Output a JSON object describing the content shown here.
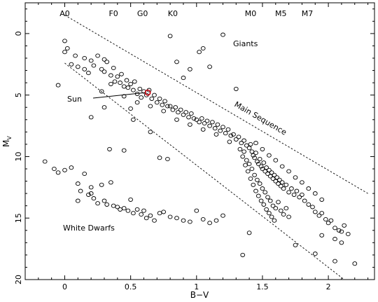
{
  "chart_data": {
    "type": "scatter",
    "title": "",
    "xlabel": "B−V",
    "ylabel": "M",
    "ylabel_subscript": "V",
    "xlim": [
      -0.3,
      2.35
    ],
    "ylim": [
      20,
      -2.5
    ],
    "y_inverted": true,
    "grid": false,
    "x_ticks": [
      0,
      0.5,
      1,
      1.5,
      2
    ],
    "x_tick_labels": [
      "0",
      "0.5",
      "1",
      "1.5",
      "2"
    ],
    "y_ticks": [
      0,
      5,
      10,
      15,
      20
    ],
    "y_tick_labels": [
      "0",
      "5",
      "10",
      "15",
      "20"
    ],
    "spectral_classes": [
      {
        "label": "A0",
        "x": 0.0
      },
      {
        "label": "F0",
        "x": 0.37
      },
      {
        "label": "G0",
        "x": 0.59
      },
      {
        "label": "K0",
        "x": 0.82
      },
      {
        "label": "M0",
        "x": 1.41
      },
      {
        "label": "M5",
        "x": 1.64
      },
      {
        "label": "M7",
        "x": 1.84
      }
    ],
    "region_labels": {
      "giants": "Giants",
      "main_sequence": "Main Sequence",
      "white_dwarfs": "White Dwarfs",
      "sun": "Sun"
    },
    "sun": {
      "x": 0.63,
      "y": 4.8,
      "color": "#c0000b"
    },
    "main_sequence_bounds": [
      {
        "name": "upper",
        "points": [
          [
            0.0,
            -1.5
          ],
          [
            2.3,
            13.0
          ]
        ]
      },
      {
        "name": "lower",
        "points": [
          [
            0.0,
            2.4
          ],
          [
            2.12,
            20.0
          ]
        ]
      }
    ],
    "series": [
      {
        "group": "main_sequence",
        "points": [
          [
            0.0,
            1.5
          ],
          [
            0.05,
            2.5
          ],
          [
            0.1,
            2.7
          ],
          [
            0.15,
            2.0
          ],
          [
            0.18,
            3.2
          ],
          [
            0.2,
            2.2
          ],
          [
            0.22,
            2.6
          ],
          [
            0.25,
            1.8
          ],
          [
            0.28,
            2.9
          ],
          [
            0.3,
            3.1
          ],
          [
            0.32,
            2.3
          ],
          [
            0.35,
            3.4
          ],
          [
            0.37,
            2.8
          ],
          [
            0.38,
            3.9
          ],
          [
            0.4,
            3.5
          ],
          [
            0.42,
            4.0
          ],
          [
            0.43,
            3.3
          ],
          [
            0.45,
            4.3
          ],
          [
            0.47,
            3.8
          ],
          [
            0.48,
            4.4
          ],
          [
            0.5,
            4.1
          ],
          [
            0.52,
            4.6
          ],
          [
            0.53,
            3.9
          ],
          [
            0.55,
            4.9
          ],
          [
            0.57,
            4.5
          ],
          [
            0.58,
            5.2
          ],
          [
            0.6,
            4.7
          ],
          [
            0.62,
            5.0
          ],
          [
            0.64,
            4.6
          ],
          [
            0.66,
            5.3
          ],
          [
            0.68,
            5.0
          ],
          [
            0.7,
            5.6
          ],
          [
            0.72,
            5.3
          ],
          [
            0.74,
            5.8
          ],
          [
            0.76,
            5.5
          ],
          [
            0.78,
            5.9
          ],
          [
            0.8,
            5.9
          ],
          [
            0.82,
            6.2
          ],
          [
            0.84,
            6.0
          ],
          [
            0.86,
            6.4
          ],
          [
            0.88,
            6.2
          ],
          [
            0.9,
            6.6
          ],
          [
            0.92,
            6.4
          ],
          [
            0.94,
            6.8
          ],
          [
            0.96,
            6.5
          ],
          [
            0.98,
            6.9
          ],
          [
            1.0,
            7.0
          ],
          [
            1.02,
            7.2
          ],
          [
            1.04,
            6.9
          ],
          [
            1.06,
            7.3
          ],
          [
            1.08,
            7.1
          ],
          [
            1.1,
            7.5
          ],
          [
            1.12,
            7.2
          ],
          [
            1.14,
            7.7
          ],
          [
            1.16,
            7.4
          ],
          [
            1.18,
            7.9
          ],
          [
            1.2,
            7.6
          ],
          [
            1.22,
            8.1
          ],
          [
            1.24,
            7.8
          ],
          [
            1.26,
            8.3
          ],
          [
            1.28,
            8.2
          ],
          [
            1.3,
            8.6
          ],
          [
            1.32,
            8.4
          ],
          [
            1.34,
            8.9
          ],
          [
            1.36,
            8.7
          ],
          [
            1.38,
            9.1
          ],
          [
            1.4,
            9.3
          ],
          [
            1.41,
            9.0
          ],
          [
            1.42,
            9.6
          ],
          [
            1.43,
            9.9
          ],
          [
            1.44,
            10.1
          ],
          [
            1.45,
            9.7
          ],
          [
            1.46,
            10.4
          ],
          [
            1.47,
            10.6
          ],
          [
            1.48,
            10.2
          ],
          [
            1.49,
            10.8
          ],
          [
            1.5,
            11.0
          ],
          [
            1.51,
            10.5
          ],
          [
            1.52,
            11.2
          ],
          [
            1.53,
            10.9
          ],
          [
            1.54,
            11.4
          ],
          [
            1.55,
            11.1
          ],
          [
            1.56,
            11.6
          ],
          [
            1.57,
            11.3
          ],
          [
            1.58,
            11.8
          ],
          [
            1.59,
            11.5
          ],
          [
            1.6,
            12.0
          ],
          [
            1.61,
            11.7
          ],
          [
            1.62,
            12.2
          ],
          [
            1.63,
            11.9
          ],
          [
            1.64,
            12.4
          ],
          [
            1.65,
            12.1
          ],
          [
            1.66,
            12.6
          ],
          [
            1.68,
            12.3
          ],
          [
            1.7,
            12.9
          ],
          [
            1.72,
            12.6
          ],
          [
            1.74,
            13.1
          ],
          [
            1.76,
            12.8
          ],
          [
            1.78,
            13.3
          ],
          [
            1.8,
            13.1
          ],
          [
            1.82,
            13.6
          ],
          [
            1.85,
            13.9
          ],
          [
            1.88,
            14.1
          ],
          [
            1.9,
            14.5
          ],
          [
            1.93,
            14.8
          ],
          [
            1.95,
            14.6
          ],
          [
            1.98,
            15.1
          ],
          [
            2.0,
            15.4
          ],
          [
            2.02,
            15.2
          ],
          [
            2.05,
            15.8
          ],
          [
            2.08,
            16.0
          ],
          [
            2.1,
            16.1
          ],
          [
            2.12,
            15.6
          ],
          [
            2.15,
            16.3
          ],
          [
            1.36,
            9.6
          ],
          [
            1.38,
            10.3
          ],
          [
            1.4,
            10.6
          ],
          [
            1.42,
            11.0
          ],
          [
            1.44,
            11.5
          ],
          [
            1.46,
            11.9
          ],
          [
            1.48,
            12.2
          ],
          [
            1.5,
            12.6
          ],
          [
            1.52,
            12.9
          ],
          [
            1.54,
            13.3
          ],
          [
            1.56,
            13.6
          ],
          [
            1.58,
            14.0
          ],
          [
            1.6,
            14.2
          ],
          [
            1.62,
            13.7
          ],
          [
            1.64,
            14.4
          ],
          [
            1.66,
            14.7
          ],
          [
            1.68,
            14.2
          ],
          [
            1.7,
            14.9
          ],
          [
            1.45,
            8.9
          ],
          [
            1.5,
            9.4
          ],
          [
            1.55,
            9.9
          ],
          [
            1.6,
            10.3
          ],
          [
            1.65,
            10.8
          ],
          [
            1.7,
            11.2
          ],
          [
            1.75,
            11.7
          ],
          [
            1.8,
            12.1
          ],
          [
            1.85,
            12.6
          ],
          [
            1.9,
            13.0
          ],
          [
            1.95,
            13.5
          ],
          [
            0.3,
            2.1
          ],
          [
            0.35,
            4.1
          ],
          [
            0.45,
            5.1
          ],
          [
            0.55,
            5.6
          ],
          [
            0.65,
            5.9
          ],
          [
            0.75,
            6.3
          ],
          [
            0.85,
            7.0
          ],
          [
            0.95,
            7.4
          ],
          [
            1.05,
            7.8
          ],
          [
            1.15,
            8.2
          ],
          [
            1.25,
            8.8
          ],
          [
            1.33,
            9.4
          ],
          [
            1.35,
            10.0
          ],
          [
            1.37,
            10.7
          ],
          [
            1.39,
            11.2
          ],
          [
            1.41,
            11.8
          ],
          [
            1.43,
            12.3
          ],
          [
            1.45,
            12.8
          ],
          [
            1.47,
            13.2
          ],
          [
            1.49,
            13.6
          ],
          [
            1.51,
            13.9
          ],
          [
            1.53,
            14.3
          ],
          [
            1.55,
            14.6
          ],
          [
            1.57,
            14.9
          ],
          [
            1.59,
            15.2
          ]
        ]
      },
      {
        "group": "scattered",
        "points": [
          [
            -0.05,
            4.2
          ],
          [
            0.0,
            0.6
          ],
          [
            0.02,
            1.2
          ],
          [
            0.08,
            1.8
          ],
          [
            0.15,
            2.9
          ],
          [
            0.2,
            6.8
          ],
          [
            0.28,
            4.7
          ],
          [
            0.3,
            6.0
          ],
          [
            0.34,
            9.4
          ],
          [
            0.45,
            9.5
          ],
          [
            0.5,
            6.1
          ],
          [
            0.52,
            7.0
          ],
          [
            0.65,
            8.0
          ],
          [
            0.72,
            10.1
          ],
          [
            0.78,
            10.2
          ],
          [
            0.8,
            0.2
          ],
          [
            0.85,
            2.3
          ],
          [
            0.9,
            3.6
          ],
          [
            0.95,
            2.9
          ],
          [
            1.02,
            1.5
          ],
          [
            1.05,
            1.2
          ],
          [
            1.1,
            2.7
          ],
          [
            1.2,
            0.1
          ],
          [
            1.3,
            4.5
          ],
          [
            1.4,
            16.2
          ],
          [
            1.35,
            18.0
          ],
          [
            1.9,
            17.9
          ],
          [
            2.05,
            18.5
          ],
          [
            2.2,
            18.7
          ],
          [
            1.75,
            17.2
          ],
          [
            1.95,
            16.4
          ],
          [
            2.05,
            16.7
          ],
          [
            2.1,
            17.0
          ]
        ]
      },
      {
        "group": "white_dwarfs",
        "points": [
          [
            -0.15,
            10.4
          ],
          [
            -0.08,
            11.0
          ],
          [
            -0.05,
            11.3
          ],
          [
            0.0,
            11.1
          ],
          [
            0.05,
            10.9
          ],
          [
            0.1,
            12.2
          ],
          [
            0.12,
            12.8
          ],
          [
            0.15,
            11.4
          ],
          [
            0.18,
            13.1
          ],
          [
            0.2,
            12.5
          ],
          [
            0.22,
            13.4
          ],
          [
            0.25,
            13.8
          ],
          [
            0.28,
            12.3
          ],
          [
            0.3,
            13.6
          ],
          [
            0.32,
            13.9
          ],
          [
            0.35,
            12.1
          ],
          [
            0.37,
            14.0
          ],
          [
            0.4,
            14.1
          ],
          [
            0.42,
            14.3
          ],
          [
            0.45,
            14.2
          ],
          [
            0.48,
            14.4
          ],
          [
            0.5,
            13.5
          ],
          [
            0.52,
            14.6
          ],
          [
            0.55,
            14.3
          ],
          [
            0.58,
            14.7
          ],
          [
            0.6,
            14.4
          ],
          [
            0.62,
            15.0
          ],
          [
            0.65,
            14.8
          ],
          [
            0.68,
            15.2
          ],
          [
            0.72,
            14.6
          ],
          [
            0.75,
            14.5
          ],
          [
            0.8,
            14.9
          ],
          [
            0.85,
            15.0
          ],
          [
            0.9,
            15.2
          ],
          [
            0.95,
            15.3
          ],
          [
            1.0,
            14.4
          ],
          [
            1.05,
            15.1
          ],
          [
            1.1,
            15.4
          ],
          [
            1.15,
            15.2
          ],
          [
            1.2,
            14.8
          ],
          [
            0.1,
            13.6
          ],
          [
            0.2,
            13.0
          ]
        ]
      }
    ]
  }
}
